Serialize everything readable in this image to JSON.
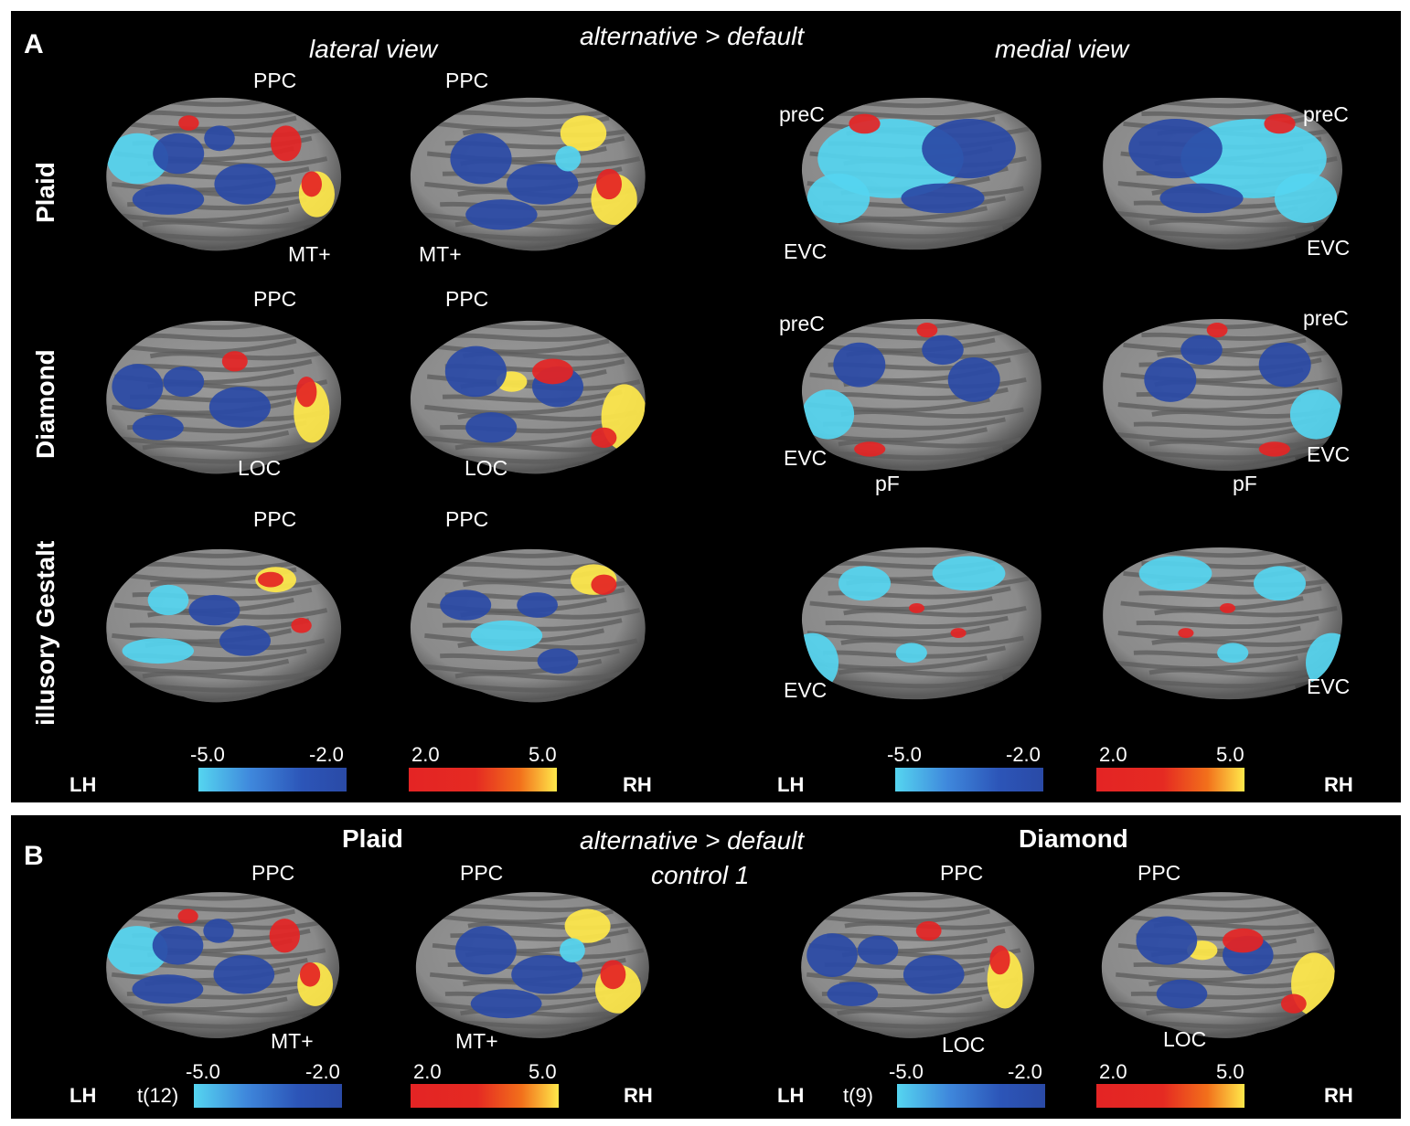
{
  "panel_a": {
    "letter": "A",
    "title": "alternative > default",
    "lateral_heading": "lateral view",
    "medial_heading": "medial view",
    "rows": [
      "Plaid",
      "Diamond",
      "illusory Gestalt"
    ],
    "colorbars": {
      "neg_min": "-5.0",
      "neg_max": "-2.0",
      "pos_min": "2.0",
      "pos_max": "5.0",
      "lh": "LH",
      "rh": "RH"
    }
  },
  "panel_b": {
    "letter": "B",
    "title": "alternative > default",
    "subtitle": "control 1",
    "left_heading": "Plaid",
    "right_heading": "Diamond",
    "left_stat": "t(12)",
    "right_stat": "t(9)",
    "colorbars": {
      "neg_min": "-5.0",
      "neg_max": "-2.0",
      "pos_min": "2.0",
      "pos_max": "5.0",
      "lh": "LH",
      "rh": "RH"
    }
  },
  "labels": {
    "ppc": "PPC",
    "mt": "MT+",
    "loc": "LOC",
    "prec": "preC",
    "evc": "EVC",
    "pf": "pF"
  },
  "colors": {
    "background": "#000000",
    "cortex_light": "#8a8a8a",
    "cortex_dark": "#5c5c5c",
    "neg_deep": "#2a4aa6",
    "neg_light": "#55d5f0",
    "pos_red": "#e42424",
    "pos_yellow": "#ffe84a"
  }
}
